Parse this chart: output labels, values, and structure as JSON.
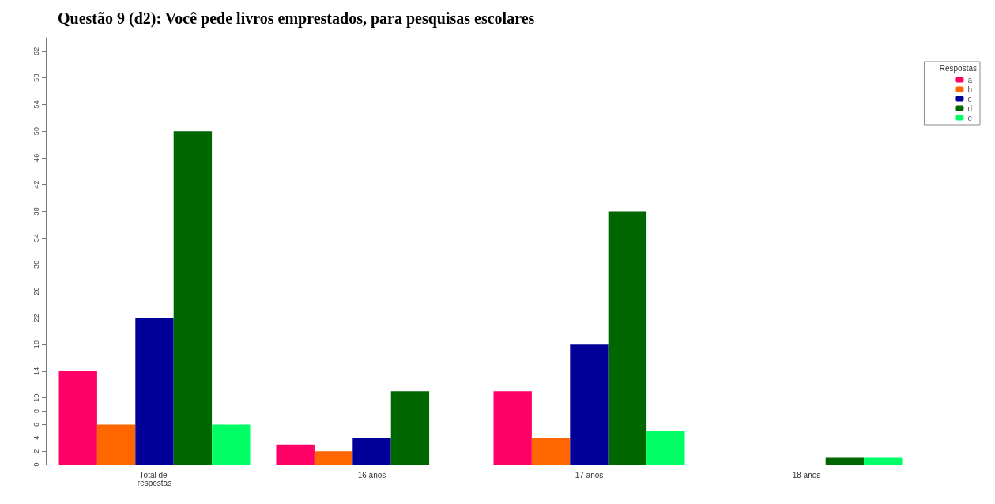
{
  "chart_data": {
    "type": "bar",
    "title": "Questão 9 (d2): Você pede livros emprestados, para pesquisas escolares",
    "legend_title": "Respostas",
    "legend": "top right",
    "grid": false,
    "categories": [
      "Total de respostas",
      "16 anos",
      "17 anos",
      "18 anos"
    ],
    "ylim": [
      0,
      64
    ],
    "yticks": [
      0,
      2,
      4,
      6,
      8,
      10,
      14,
      18,
      22,
      26,
      30,
      34,
      38,
      42,
      46,
      50,
      54,
      58,
      62
    ],
    "series": [
      {
        "name": "a",
        "color": "#ff0066",
        "values": [
          14,
          3,
          11,
          0
        ]
      },
      {
        "name": "b",
        "color": "#ff6600",
        "values": [
          6,
          2,
          4,
          0
        ]
      },
      {
        "name": "c",
        "color": "#000099",
        "values": [
          22,
          4,
          18,
          0
        ]
      },
      {
        "name": "d",
        "color": "#006600",
        "values": [
          50,
          11,
          38,
          1
        ]
      },
      {
        "name": "e",
        "color": "#00ff66",
        "values": [
          6,
          0,
          5,
          1
        ]
      }
    ]
  }
}
